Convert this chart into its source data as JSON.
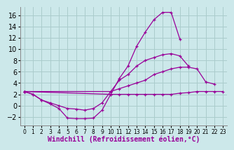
{
  "background_color": "#cce8ea",
  "grid_color": "#aacccc",
  "line_color": "#990099",
  "xlabel": "Windchill (Refroidissement éolien,°C)",
  "xlabel_fontsize": 7,
  "ytick_fontsize": 7,
  "xtick_fontsize": 5.5,
  "xlim": [
    -0.5,
    23.5
  ],
  "ylim": [
    -3.5,
    17.5
  ],
  "yticks": [
    -2,
    0,
    2,
    4,
    6,
    8,
    10,
    12,
    14,
    16
  ],
  "xticks": [
    0,
    1,
    2,
    3,
    4,
    5,
    6,
    7,
    8,
    9,
    10,
    11,
    12,
    13,
    14,
    15,
    16,
    17,
    18,
    19,
    20,
    21,
    22,
    23
  ],
  "series": [
    {
      "comment": "top spike series - goes very high then drops sharply",
      "x": [
        0,
        1,
        2,
        3,
        4,
        5,
        6,
        7,
        8,
        9,
        10,
        11,
        12,
        13,
        14,
        15,
        16,
        17,
        18,
        19,
        20,
        21,
        22,
        23
      ],
      "y": [
        2.5,
        2.0,
        1.0,
        0.3,
        -0.5,
        -2.2,
        -2.3,
        -2.3,
        -2.2,
        -0.8,
        2.0,
        4.8,
        7.0,
        10.5,
        13.0,
        15.2,
        16.5,
        16.5,
        11.8,
        null,
        null,
        null,
        null,
        null
      ]
    },
    {
      "comment": "second high series - rises to ~9 at 17, ends ~9",
      "x": [
        0,
        1,
        2,
        3,
        4,
        5,
        6,
        7,
        8,
        9,
        10,
        11,
        12,
        13,
        14,
        15,
        16,
        17,
        18,
        19,
        20,
        21,
        22,
        23
      ],
      "y": [
        2.5,
        2.0,
        1.0,
        0.5,
        0.0,
        -0.5,
        -0.6,
        -0.8,
        -0.5,
        0.5,
        2.5,
        4.5,
        5.5,
        7.0,
        8.0,
        8.5,
        9.0,
        9.2,
        8.8,
        7.0,
        null,
        null,
        null,
        null
      ]
    },
    {
      "comment": "mid series - gently rises, peaks ~20, ends ~6.5",
      "x": [
        0,
        1,
        2,
        3,
        4,
        5,
        6,
        7,
        8,
        9,
        10,
        11,
        12,
        13,
        14,
        15,
        16,
        17,
        18,
        19,
        20,
        21,
        22,
        23
      ],
      "y": [
        2.5,
        null,
        null,
        null,
        null,
        null,
        null,
        null,
        null,
        null,
        2.5,
        3.0,
        3.5,
        4.0,
        4.5,
        5.5,
        6.0,
        6.5,
        6.8,
        6.8,
        6.5,
        4.2,
        3.8,
        null
      ]
    },
    {
      "comment": "flat bottom series - nearly flat ~2, slight rise at end",
      "x": [
        0,
        1,
        2,
        3,
        4,
        5,
        6,
        7,
        8,
        9,
        10,
        11,
        12,
        13,
        14,
        15,
        16,
        17,
        18,
        19,
        20,
        21,
        22,
        23
      ],
      "y": [
        2.5,
        null,
        null,
        null,
        null,
        null,
        null,
        null,
        null,
        null,
        2.0,
        2.0,
        2.0,
        2.0,
        2.0,
        2.0,
        2.0,
        2.0,
        2.2,
        2.3,
        2.5,
        2.5,
        2.5,
        2.5
      ]
    }
  ]
}
